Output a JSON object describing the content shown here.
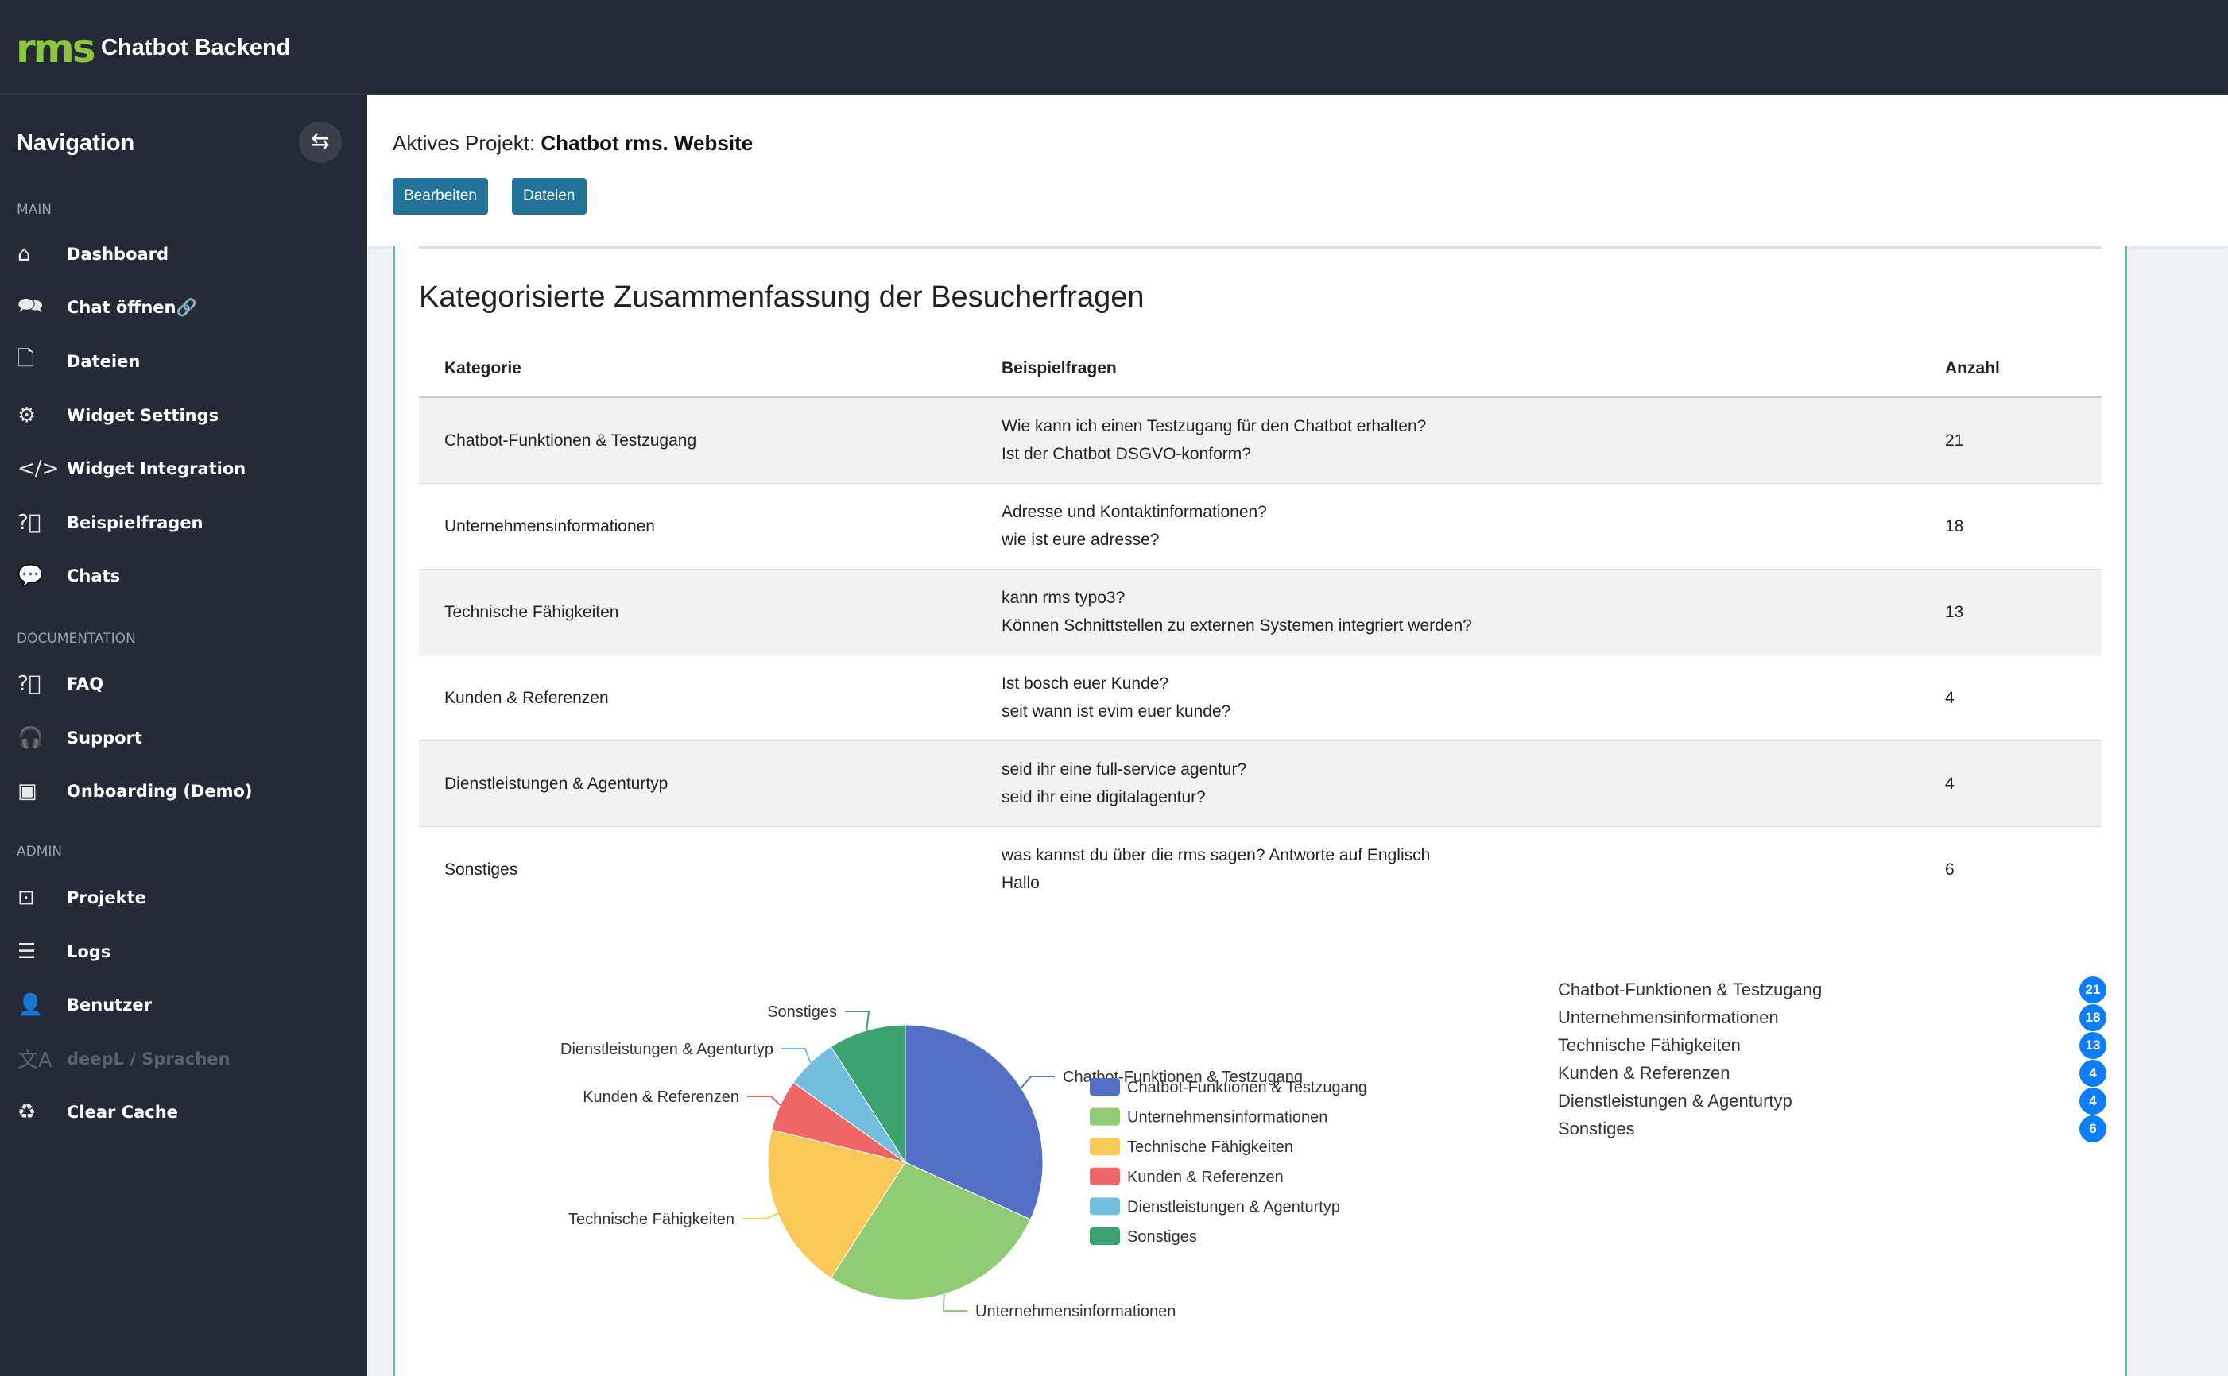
{
  "header": {
    "logo": "rms",
    "title": "Chatbot Backend"
  },
  "sidebar": {
    "title": "Navigation",
    "sections": [
      {
        "label": "MAIN",
        "items": [
          {
            "label": "Dashboard",
            "icon": "home-icon",
            "glyph": "⌂"
          },
          {
            "label": "Chat öffnen🔗",
            "icon": "chat-icon",
            "glyph": "🗪"
          },
          {
            "label": "Dateien",
            "icon": "file-icon",
            "glyph": "🗋"
          },
          {
            "label": "Widget Settings",
            "icon": "gear-icon",
            "glyph": "⚙"
          },
          {
            "label": "Widget Integration",
            "icon": "code-icon",
            "glyph": "</>"
          },
          {
            "label": "Beispielfragen",
            "icon": "question-icon",
            "glyph": "?⃝"
          },
          {
            "label": "Chats",
            "icon": "message-icon",
            "glyph": "💬"
          }
        ]
      },
      {
        "label": "DOCUMENTATION",
        "items": [
          {
            "label": "FAQ",
            "icon": "question-icon",
            "glyph": "?⃝"
          },
          {
            "label": "Support",
            "icon": "headset-icon",
            "glyph": "🎧"
          },
          {
            "label": "Onboarding (Demo)",
            "icon": "presentation-icon",
            "glyph": "▣"
          }
        ]
      },
      {
        "label": "ADMIN",
        "items": [
          {
            "label": "Projekte",
            "icon": "projector-icon",
            "glyph": "⊡"
          },
          {
            "label": "Logs",
            "icon": "list-ordered-icon",
            "glyph": "☰"
          },
          {
            "label": "Benutzer",
            "icon": "user-icon",
            "glyph": "👤"
          },
          {
            "label": "deepL / Sprachen",
            "icon": "translate-icon",
            "glyph": "文A",
            "disabled": true
          },
          {
            "label": "Clear Cache",
            "icon": "recycle-icon",
            "glyph": "♻"
          }
        ]
      }
    ]
  },
  "project": {
    "prefix": "Aktives Projekt:",
    "name": "Chatbot rms. Website",
    "edit_label": "Bearbeiten",
    "files_label": "Dateien"
  },
  "summary": {
    "title": "Kategorisierte Zusammenfassung der Besucherfragen",
    "columns": [
      "Kategorie",
      "Beispielfragen",
      "Anzahl"
    ],
    "rows": [
      {
        "category": "Chatbot-Funktionen & Testzugang",
        "q1": "Wie kann ich einen Testzugang für den Chatbot erhalten?",
        "q2": "Ist der Chatbot DSGVO-konform?",
        "count": "21"
      },
      {
        "category": "Unternehmensinformationen",
        "q1": "Adresse und Kontaktinformationen?",
        "q2": "wie ist eure adresse?",
        "count": "18"
      },
      {
        "category": "Technische Fähigkeiten",
        "q1": "kann rms typo3?",
        "q2": "Können Schnittstellen zu externen Systemen integriert werden?",
        "count": "13"
      },
      {
        "category": "Kunden & Referenzen",
        "q1": "Ist bosch euer Kunde?",
        "q2": "seit wann ist evim euer kunde?",
        "count": "4"
      },
      {
        "category": "Dienstleistungen & Agenturtyp",
        "q1": "seid ihr eine full-service agentur?",
        "q2": "seid ihr eine digitalagentur?",
        "count": "4"
      },
      {
        "category": "Sonstiges",
        "q1": "was kannst du über die rms sagen? Antworte auf Englisch",
        "q2": "Hallo",
        "count": "6"
      }
    ]
  },
  "chart_data": {
    "type": "pie",
    "categories": [
      "Chatbot-Funktionen & Testzugang",
      "Unternehmensinformationen",
      "Technische Fähigkeiten",
      "Kunden & Referenzen",
      "Dienstleistungen & Agenturtyp",
      "Sonstiges"
    ],
    "values": [
      21,
      18,
      13,
      4,
      4,
      6
    ],
    "colors": [
      "#5470c6",
      "#91cc75",
      "#fac858",
      "#ee6666",
      "#73c0de",
      "#3ba272"
    ],
    "legend": "right"
  },
  "colors": {
    "sidebar": "#252a36",
    "accent": "#22739a",
    "badge": "#0d7ef7",
    "logo": "#8cc63f"
  }
}
